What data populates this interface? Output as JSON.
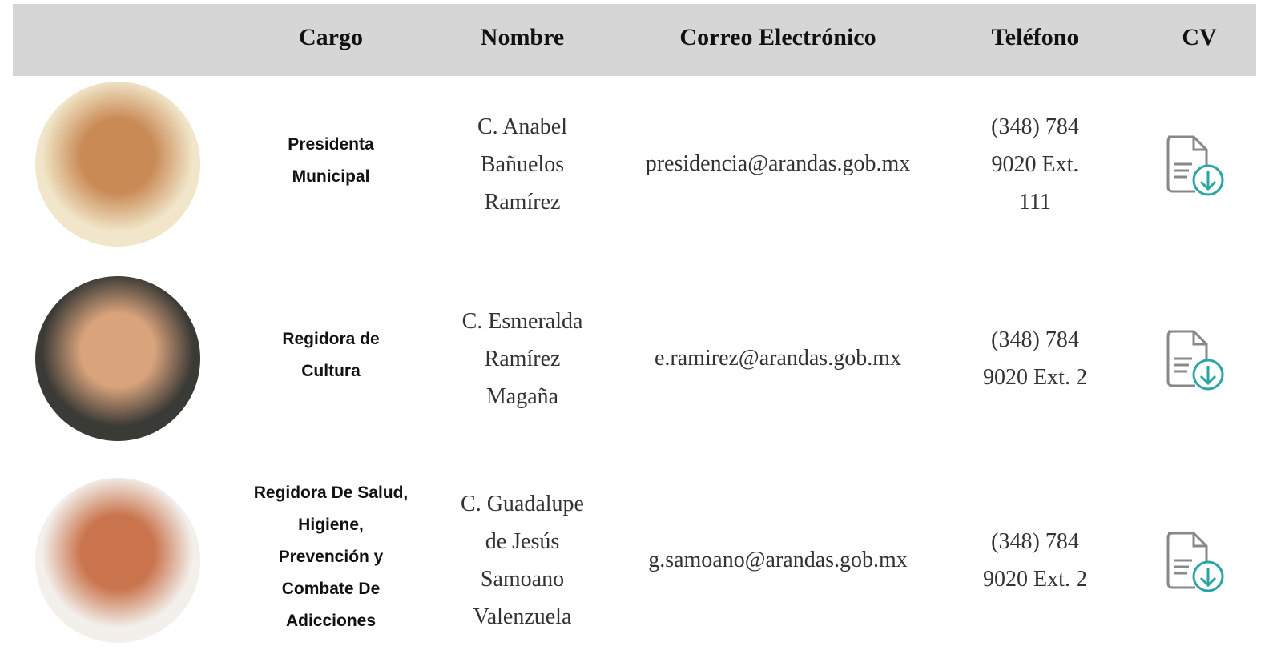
{
  "header": {
    "columns": [
      "Cargo",
      "Nombre",
      "Correo Electrónico",
      "Teléfono",
      "CV"
    ]
  },
  "table": {
    "rows": [
      {
        "cargo": [
          "Presidenta",
          "Municipal"
        ],
        "nombre": [
          "C. Anabel",
          "Bañuelos",
          "Ramírez"
        ],
        "correo": "presidencia@arandas.gob.mx",
        "telefono": [
          "(348) 784",
          "9020 Ext.",
          "111"
        ]
      },
      {
        "cargo": [
          "Regidora de",
          "Cultura"
        ],
        "nombre": [
          "C. Esmeralda",
          "Ramírez",
          "Magaña"
        ],
        "correo": "e.ramirez@arandas.gob.mx",
        "telefono": [
          "(348) 784",
          "9020 Ext. 2"
        ]
      },
      {
        "cargo": [
          "Regidora De Salud,",
          "Higiene,",
          "Prevención y",
          "Combate De",
          "Adicciones"
        ],
        "nombre": [
          "C. Guadalupe",
          "de Jesús",
          "Samoano",
          "Valenzuela"
        ],
        "correo": "g.samoano@arandas.gob.mx",
        "telefono": [
          "(348) 784",
          "9020 Ext. 2"
        ]
      }
    ]
  }
}
